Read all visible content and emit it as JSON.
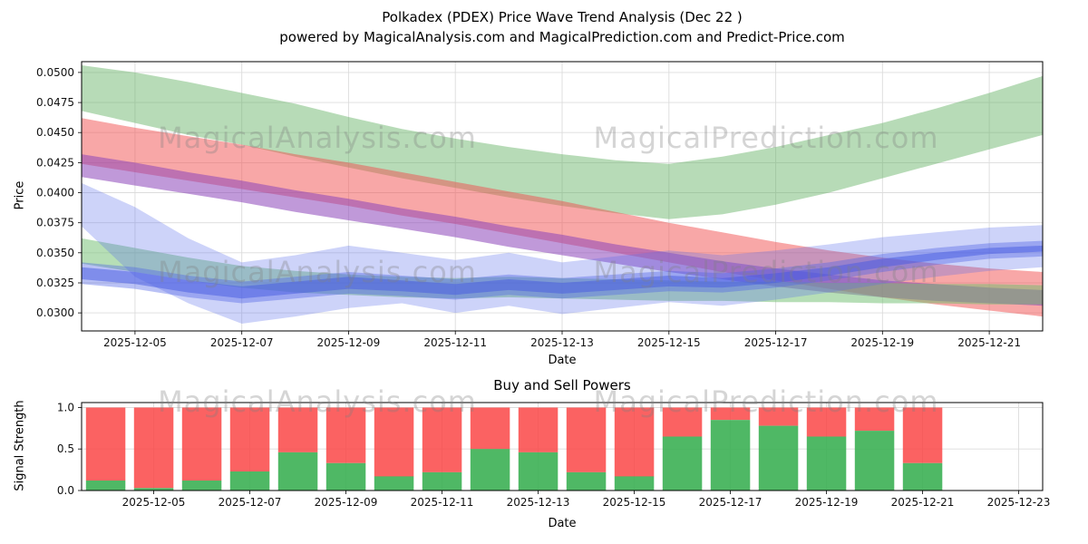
{
  "title": {
    "line1": "Polkadex (PDEX) Price Wave Trend Analysis (Dec 22 )",
    "line2": "powered by MagicalAnalysis.com and MagicalPrediction.com and Predict-Price.com"
  },
  "watermark": {
    "analysis": "MagicalAnalysis.com",
    "prediction": "MagicalPrediction.com"
  },
  "chart_data": [
    {
      "type": "area",
      "title": "",
      "xlabel": "Date",
      "ylabel": "Price",
      "grid": true,
      "xlim_days": [
        4,
        22
      ],
      "ylim": [
        0.0285,
        0.0509
      ],
      "x_days": [
        4,
        5,
        6,
        7,
        8,
        9,
        10,
        11,
        12,
        13,
        14,
        15,
        16,
        17,
        18,
        19,
        20,
        21,
        22
      ],
      "x_dates": [
        "2025-12-04",
        "2025-12-05",
        "2025-12-06",
        "2025-12-07",
        "2025-12-08",
        "2025-12-09",
        "2025-12-10",
        "2025-12-11",
        "2025-12-12",
        "2025-12-13",
        "2025-12-14",
        "2025-12-15",
        "2025-12-16",
        "2025-12-17",
        "2025-12-18",
        "2025-12-19",
        "2025-12-20",
        "2025-12-21",
        "2025-12-22"
      ],
      "xtick_days": [
        5,
        7,
        9,
        11,
        13,
        15,
        17,
        19,
        21
      ],
      "xtick_labels": [
        "2025-12-05",
        "2025-12-07",
        "2025-12-09",
        "2025-12-11",
        "2025-12-13",
        "2025-12-15",
        "2025-12-17",
        "2025-12-19",
        "2025-12-21"
      ],
      "ytick_values": [
        0.03,
        0.0325,
        0.035,
        0.0375,
        0.04,
        0.0425,
        0.045,
        0.0475,
        0.05
      ],
      "ytick_labels": [
        "0.0300",
        "0.0325",
        "0.0350",
        "0.0375",
        "0.0400",
        "0.0425",
        "0.0450",
        "0.0475",
        "0.0500"
      ],
      "bands": [
        {
          "name": "green-trend-channel",
          "color": "rgba(96,176,96,0.45)",
          "upper": [
            0.0506,
            0.05,
            0.0492,
            0.0483,
            0.0474,
            0.0463,
            0.0453,
            0.0445,
            0.0438,
            0.0432,
            0.0427,
            0.0424,
            0.043,
            0.0438,
            0.0448,
            0.0458,
            0.047,
            0.0483,
            0.0497
          ],
          "lower": [
            0.0468,
            0.0458,
            0.0448,
            0.044,
            0.043,
            0.0421,
            0.0412,
            0.0404,
            0.0396,
            0.0389,
            0.0383,
            0.0378,
            0.0382,
            0.039,
            0.04,
            0.0412,
            0.0424,
            0.0436,
            0.0448
          ]
        },
        {
          "name": "red-downtrend-channel",
          "color": "rgba(242,80,80,0.5)",
          "upper": [
            0.0462,
            0.0454,
            0.0447,
            0.044,
            0.0432,
            0.0425,
            0.0417,
            0.0409,
            0.0401,
            0.0393,
            0.0384,
            0.0375,
            0.0367,
            0.0359,
            0.0352,
            0.0346,
            0.0341,
            0.0337,
            0.0334
          ],
          "lower": [
            0.0424,
            0.0417,
            0.041,
            0.0403,
            0.0396,
            0.0389,
            0.0381,
            0.0374,
            0.0366,
            0.0358,
            0.035,
            0.0342,
            0.0334,
            0.0327,
            0.032,
            0.0313,
            0.0307,
            0.0302,
            0.0297
          ]
        },
        {
          "name": "purple-downtrend-band",
          "color": "rgba(140,70,185,0.55)",
          "upper": [
            0.0432,
            0.0425,
            0.0417,
            0.041,
            0.0402,
            0.0395,
            0.0387,
            0.038,
            0.0372,
            0.0365,
            0.0357,
            0.035,
            0.0343,
            0.0337,
            0.0332,
            0.0327,
            0.0324,
            0.0321,
            0.0319
          ],
          "lower": [
            0.0413,
            0.0406,
            0.0399,
            0.0392,
            0.0384,
            0.0377,
            0.037,
            0.0363,
            0.0355,
            0.0348,
            0.0341,
            0.0334,
            0.0328,
            0.0322,
            0.0317,
            0.0313,
            0.031,
            0.0308,
            0.0306
          ]
        },
        {
          "name": "green-support-band",
          "color": "rgba(110,190,110,0.5)",
          "upper": [
            0.0362,
            0.0354,
            0.0346,
            0.0339,
            0.0335,
            0.0332,
            0.033,
            0.0329,
            0.033,
            0.0329,
            0.0328,
            0.0327,
            0.0326,
            0.0326,
            0.0325,
            0.0325,
            0.0324,
            0.0324,
            0.0323
          ],
          "lower": [
            0.0341,
            0.0334,
            0.0327,
            0.0321,
            0.0317,
            0.0315,
            0.0313,
            0.0312,
            0.0313,
            0.0312,
            0.0311,
            0.031,
            0.031,
            0.0309,
            0.0309,
            0.0308,
            0.0308,
            0.0307,
            0.0307
          ]
        },
        {
          "name": "blue-wave-outer",
          "color": "rgba(90,110,235,0.3)",
          "upper": [
            0.0408,
            0.0388,
            0.0362,
            0.0342,
            0.0348,
            0.0356,
            0.035,
            0.0344,
            0.035,
            0.0342,
            0.0347,
            0.0352,
            0.0348,
            0.0352,
            0.0357,
            0.0363,
            0.0367,
            0.0371,
            0.0373
          ],
          "lower": [
            0.0372,
            0.033,
            0.0308,
            0.0291,
            0.0297,
            0.0304,
            0.0308,
            0.03,
            0.0306,
            0.0299,
            0.0304,
            0.0309,
            0.0306,
            0.0311,
            0.0317,
            0.0324,
            0.033,
            0.0335,
            0.0338
          ]
        },
        {
          "name": "blue-wave-mid",
          "color": "rgba(80,100,230,0.4)",
          "upper": [
            0.0342,
            0.0338,
            0.0331,
            0.0326,
            0.033,
            0.0334,
            0.0331,
            0.0328,
            0.0332,
            0.0329,
            0.0332,
            0.0335,
            0.0333,
            0.0337,
            0.0342,
            0.0349,
            0.0354,
            0.0358,
            0.036
          ],
          "lower": [
            0.0324,
            0.032,
            0.0313,
            0.0308,
            0.0312,
            0.0316,
            0.0314,
            0.0311,
            0.0315,
            0.0312,
            0.0315,
            0.0318,
            0.0317,
            0.0321,
            0.0327,
            0.0334,
            0.034,
            0.0345,
            0.0347
          ]
        },
        {
          "name": "blue-wave-core",
          "color": "rgba(70,90,225,0.5)",
          "upper": [
            0.0338,
            0.0334,
            0.0327,
            0.0322,
            0.0326,
            0.033,
            0.0327,
            0.0324,
            0.0328,
            0.0325,
            0.0328,
            0.0331,
            0.0329,
            0.0333,
            0.0338,
            0.0345,
            0.035,
            0.0354,
            0.0356
          ],
          "lower": [
            0.0328,
            0.0324,
            0.0317,
            0.0312,
            0.0316,
            0.032,
            0.0318,
            0.0315,
            0.0319,
            0.0316,
            0.0319,
            0.0322,
            0.0321,
            0.0325,
            0.0331,
            0.0338,
            0.0344,
            0.0349,
            0.0351
          ]
        }
      ]
    },
    {
      "type": "bar",
      "title": "Buy and Sell Powers",
      "xlabel": "Date",
      "ylabel": "Signal Strength",
      "grid": true,
      "stacked": true,
      "xlim_days": [
        3.5,
        23.5
      ],
      "ylim": [
        0,
        1.06
      ],
      "bar_days": [
        4,
        5,
        6,
        7,
        8,
        9,
        10,
        11,
        12,
        13,
        14,
        15,
        16,
        17,
        18,
        19,
        20,
        21
      ],
      "categories": [
        "2025-12-04",
        "2025-12-05",
        "2025-12-06",
        "2025-12-07",
        "2025-12-08",
        "2025-12-09",
        "2025-12-10",
        "2025-12-11",
        "2025-12-12",
        "2025-12-13",
        "2025-12-14",
        "2025-12-15",
        "2025-12-16",
        "2025-12-17",
        "2025-12-18",
        "2025-12-19",
        "2025-12-20",
        "2025-12-21"
      ],
      "series": [
        {
          "name": "buy-power",
          "color": "rgba(60,176,84,0.9)",
          "values": [
            0.12,
            0.03,
            0.12,
            0.23,
            0.46,
            0.33,
            0.17,
            0.22,
            0.5,
            0.46,
            0.22,
            0.17,
            0.65,
            0.85,
            0.78,
            0.65,
            0.72,
            0.33
          ]
        },
        {
          "name": "sell-power",
          "color": "rgba(250,70,70,0.85)",
          "values": [
            0.88,
            0.97,
            0.88,
            0.77,
            0.54,
            0.67,
            0.83,
            0.78,
            0.5,
            0.54,
            0.78,
            0.83,
            0.35,
            0.15,
            0.22,
            0.35,
            0.28,
            0.67
          ]
        }
      ],
      "xtick_days": [
        5,
        7,
        9,
        11,
        13,
        15,
        17,
        19,
        21,
        23
      ],
      "xtick_labels": [
        "2025-12-05",
        "2025-12-07",
        "2025-12-09",
        "2025-12-11",
        "2025-12-13",
        "2025-12-15",
        "2025-12-17",
        "2025-12-19",
        "2025-12-21",
        "2025-12-23"
      ],
      "ytick_values": [
        0.0,
        0.5,
        1.0
      ],
      "ytick_labels": [
        "0.0",
        "0.5",
        "1.0"
      ]
    }
  ]
}
